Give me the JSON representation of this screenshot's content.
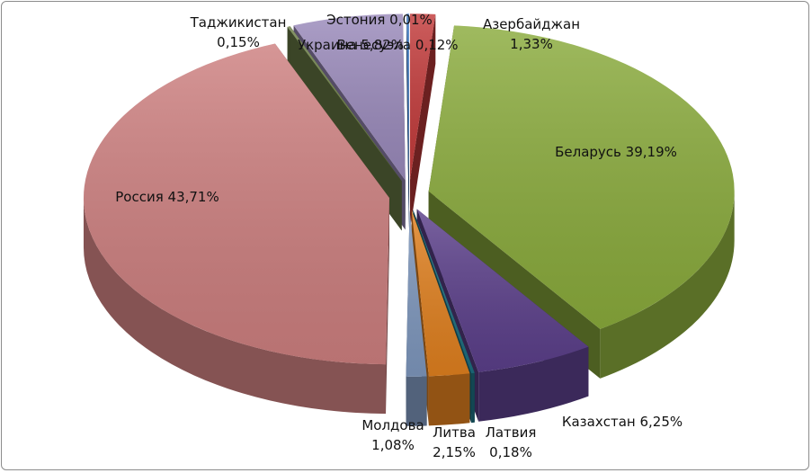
{
  "chart_data": {
    "type": "pie",
    "variant": "exploded-3d",
    "title": "",
    "legend": "none",
    "series": [
      {
        "name": "Азербайджан",
        "value": 1.33,
        "label_name": "Азербайджан",
        "label_value": "1,33%",
        "color": "#c23a3a"
      },
      {
        "name": "Беларусь",
        "value": 39.19,
        "label_name": "Беларусь",
        "label_value": "39,19%",
        "color": "#8aab3c"
      },
      {
        "name": "Казахстан",
        "value": 6.25,
        "label_name": "Казахстан",
        "label_value": "6,25%",
        "color": "#5b3f8a"
      },
      {
        "name": "Латвия",
        "value": 0.18,
        "label_name": "Латвия",
        "label_value": "0,18%",
        "color": "#1d6d7e"
      },
      {
        "name": "Литва",
        "value": 2.15,
        "label_name": "Литва",
        "label_value": "2,15%",
        "color": "#e0801f"
      },
      {
        "name": "Молдова",
        "value": 1.08,
        "label_name": "Молдова",
        "label_value": "1,08%",
        "color": "#7e97bd"
      },
      {
        "name": "Россия",
        "value": 43.71,
        "label_name": "Россия",
        "label_value": "43,71%",
        "color": "#cd7f7f"
      },
      {
        "name": "Таджикистан",
        "value": 0.15,
        "label_name": "Таджикистан",
        "label_value": "0,15%",
        "color": "#6b7d46"
      },
      {
        "name": "Украина",
        "value": 5.82,
        "label_name": "Украина",
        "label_value": "5,82%",
        "color": "#9a8abb"
      },
      {
        "name": "Эстония",
        "value": 0.01,
        "label_name": "Эстония",
        "label_value": "0,01%",
        "color": "#3b6db0"
      },
      {
        "name": "Венесуэла",
        "value": 0.12,
        "label_name": "Венесуэла",
        "label_value": "0,12%",
        "color": "#3a78c2"
      }
    ]
  }
}
